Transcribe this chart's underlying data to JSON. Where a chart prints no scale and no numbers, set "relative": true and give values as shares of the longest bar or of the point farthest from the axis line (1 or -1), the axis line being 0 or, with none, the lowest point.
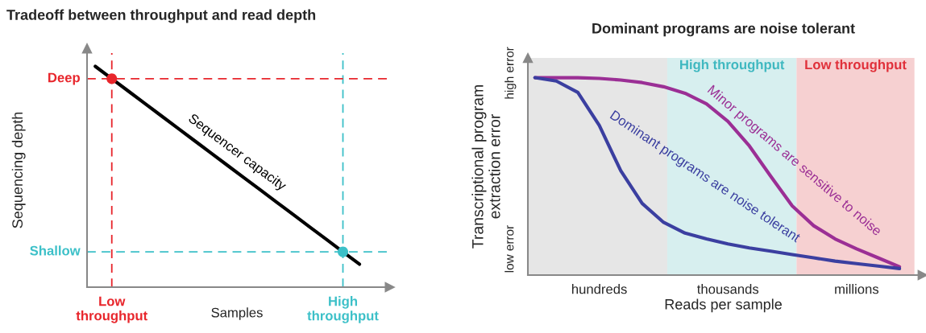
{
  "chart_data": [
    {
      "type": "line",
      "title": "Tradeoff between throughput and read depth",
      "xlabel": "Samples",
      "ylabel": "Sequencing depth",
      "relative": true,
      "categories": [
        null,
        "Low\nthroughput",
        null,
        null,
        null,
        null,
        null,
        null,
        null,
        null,
        null,
        null,
        null,
        null,
        null,
        "High\nthroughput",
        null
      ],
      "series": [
        {
          "name": "Sequencer capacity",
          "color": "#000000",
          "values": [
            1,
            0.944,
            0.888,
            0.832,
            0.776,
            0.72,
            0.664,
            0.608,
            0.552,
            0.496,
            0.44,
            0.384,
            0.328,
            0.272,
            0.216,
            0.16,
            0.104
          ]
        },
        {
          "type": "scatter",
          "color": "#e8262c",
          "values": [
            null,
            0.944,
            null,
            null,
            null,
            null,
            null,
            null,
            null,
            null,
            null,
            null,
            null,
            null,
            null,
            null,
            null
          ]
        },
        {
          "type": "scatter",
          "color": "#3cc0c8",
          "values": [
            null,
            null,
            null,
            null,
            null,
            null,
            null,
            null,
            null,
            null,
            null,
            null,
            null,
            null,
            null,
            0.16,
            null
          ]
        }
      ],
      "ref_lines": [
        {
          "axis": "x",
          "value": "Low\nthroughput",
          "color": "#e8262c",
          "line_style": "dashed"
        },
        {
          "axis": "x",
          "value": "High\nthroughput",
          "color": "#3cc0c8",
          "line_style": "dashed"
        },
        {
          "axis": "y",
          "value": 0.944,
          "label": "Deep",
          "color": "#e8262c",
          "line_style": "dashed"
        },
        {
          "axis": "y",
          "value": 0.16,
          "label": "Shallow",
          "color": "#3cc0c8",
          "line_style": "dashed"
        }
      ]
    },
    {
      "type": "line",
      "title": "Dominant programs are noise tolerant",
      "xlabel": "Reads per sample",
      "ylabel": "Transcriptional program\nextraction error",
      "relative": true,
      "categories": [
        null,
        null,
        null,
        "hundreds",
        null,
        null,
        null,
        null,
        null,
        "thousands",
        null,
        null,
        null,
        null,
        null,
        "millions",
        null,
        null
      ],
      "series": [
        {
          "name": "Minor programs are sensitive to noise",
          "color": "#9b2f95",
          "values": [
            1,
            1,
            1,
            0.996,
            0.988,
            0.975,
            0.954,
            0.921,
            0.867,
            0.779,
            0.654,
            0.5,
            0.35,
            0.25,
            0.183,
            0.133,
            0.0875,
            0.042
          ]
        },
        {
          "name": "Dominant programs are noise tolerant",
          "color": "#3b3fa0",
          "values": [
            1,
            0.983,
            0.925,
            0.758,
            0.529,
            0.363,
            0.267,
            0.2125,
            0.183,
            0.158,
            0.1375,
            0.121,
            0.104,
            0.0875,
            0.071,
            0.058,
            0.046,
            0.033
          ]
        }
      ],
      "annotations": [
        "high error",
        "low error",
        "High throughput",
        "Low throughput"
      ]
    }
  ]
}
